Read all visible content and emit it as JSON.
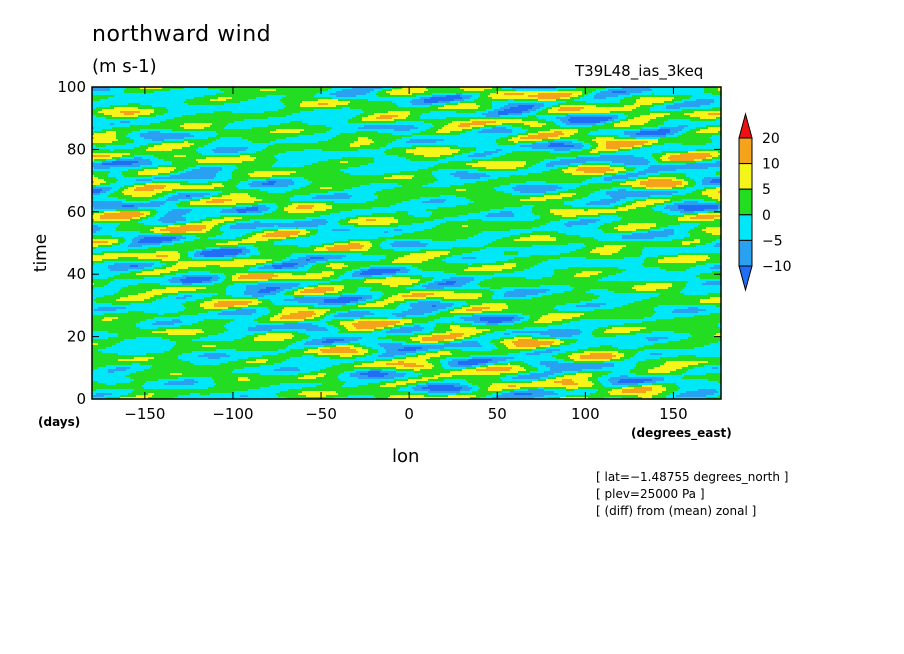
{
  "chart_data": {
    "type": "heatmap",
    "title": "northward wind",
    "units_label": "(m s-1)",
    "run_label": "T39L48_ias_3keq",
    "xlabel": "lon",
    "ylabel": "time",
    "x_unit_label": "(degrees_east)",
    "y_unit_label": "(days)",
    "xlim": [
      -180,
      177
    ],
    "ylim": [
      0,
      100
    ],
    "x_ticks": [
      -150,
      -100,
      -50,
      0,
      50,
      100,
      150
    ],
    "y_ticks": [
      0,
      20,
      40,
      60,
      80,
      100
    ],
    "color_levels": [
      -10,
      -5,
      0,
      5,
      10,
      20
    ],
    "colorbar_labels": [
      "20",
      "10",
      "5",
      "0",
      "−5",
      "−10"
    ],
    "colors": {
      "below_-10": "#1f6ef5",
      "-10_to_-5": "#2aa0f0",
      "-5_to_0": "#00e8f8",
      "0_to_5": "#22dd22",
      "5_to_10": "#f5f51a",
      "10_to_20": "#f5a31a",
      "above_20": "#ee1111"
    },
    "annotations": [
      "[ lat=−1.48755 degrees_north ]",
      "[ plev=25000 Pa ]",
      "[ (diff) from (mean) zonal ]"
    ],
    "grid": false,
    "legend": "right"
  }
}
